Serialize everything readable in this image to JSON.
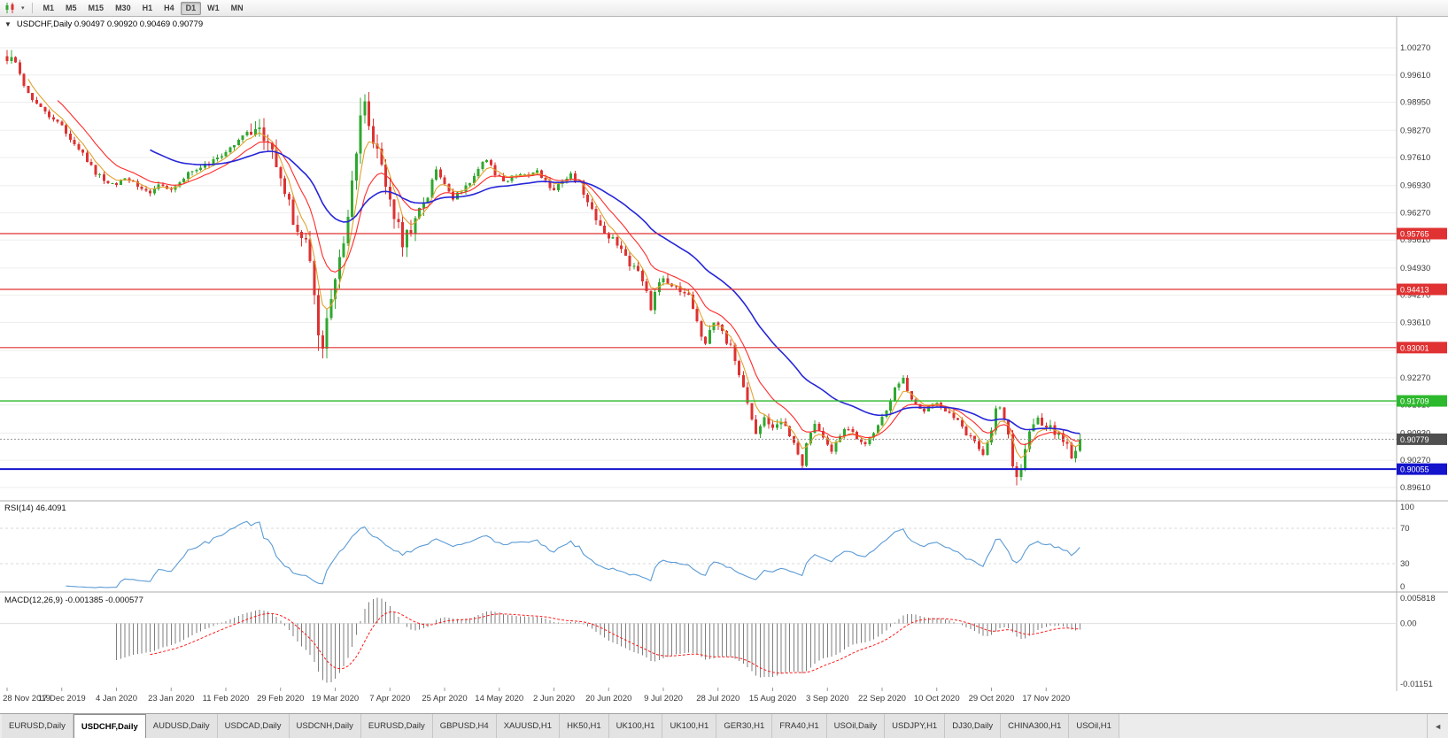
{
  "toolbar": {
    "timeframes": [
      {
        "label": "M1",
        "active": false
      },
      {
        "label": "M5",
        "active": false
      },
      {
        "label": "M15",
        "active": false
      },
      {
        "label": "M30",
        "active": false
      },
      {
        "label": "H1",
        "active": false
      },
      {
        "label": "H4",
        "active": false
      },
      {
        "label": "D1",
        "active": true
      },
      {
        "label": "W1",
        "active": false
      },
      {
        "label": "MN",
        "active": false
      }
    ],
    "icons": [
      {
        "name": "chart-type-icon"
      },
      {
        "name": "dropdown-caret-icon",
        "glyph": "▾"
      }
    ]
  },
  "chart": {
    "header": {
      "caret": "▼",
      "text": "USDCHF,Daily 0.90497 0.90920 0.90469 0.90779"
    }
  },
  "indicators": {
    "rsi": {
      "label": "RSI(14) 46.4091",
      "scale_labels": [
        "100",
        "70",
        "30",
        "0"
      ]
    },
    "macd": {
      "label": "MACD(12,26,9) -0.001385 -0.000577",
      "scale_labels": [
        "0.005818",
        "0.00",
        "-0.01151"
      ]
    }
  },
  "colors": {
    "up": "#2fa82f",
    "down": "#dd3232",
    "rsi": "#5b9bd5",
    "macd_hist": "#7f7f7f",
    "macd_signal": "#ff1a1a",
    "grid": "#ededed"
  },
  "chart_data": {
    "type": "candlestick",
    "symbol": "USDCHF",
    "timeframe": "Daily",
    "title": "USDCHF,Daily",
    "ylim": [
      0.8935,
      1.0085
    ],
    "candle_count": 256,
    "last_candle": {
      "open": 0.90497,
      "high": 0.9092,
      "low": 0.90469,
      "close": 0.90779
    },
    "current_price": {
      "value": 0.90779,
      "label": "0.90779",
      "tag_color": "#4f4f4f"
    },
    "y_ticks": [
      "1.00270",
      "0.99610",
      "0.98950",
      "0.98270",
      "0.97610",
      "0.96930",
      "0.96270",
      "0.95610",
      "0.94930",
      "0.94270",
      "0.93610",
      "0.92930",
      "0.92270",
      "0.91610",
      "0.90930",
      "0.90270",
      "0.89610"
    ],
    "x_labels": [
      "28 Nov 2019",
      "17 Dec 2019",
      "4 Jan 2020",
      "23 Jan 2020",
      "11 Feb 2020",
      "29 Feb 2020",
      "19 Mar 2020",
      "7 Apr 2020",
      "25 Apr 2020",
      "14 May 2020",
      "2 Jun 2020",
      "20 Jun 2020",
      "9 Jul 2020",
      "28 Jul 2020",
      "15 Aug 2020",
      "3 Sep 2020",
      "22 Sep 2020",
      "10 Oct 2020",
      "29 Oct 2020",
      "17 Nov 2020"
    ],
    "horizontal_levels": [
      {
        "price": 0.95765,
        "label": "0.95765",
        "color": "#e03232",
        "width": 1.2
      },
      {
        "price": 0.94413,
        "label": "0.94413",
        "color": "#e03232",
        "width": 1.2
      },
      {
        "price": 0.93001,
        "label": "0.93001",
        "color": "#e03232",
        "width": 1.2
      },
      {
        "price": 0.91709,
        "label": "0.91709",
        "color": "#2db92d",
        "width": 1.4
      },
      {
        "price": 0.90055,
        "label": "0.90055",
        "color": "#1414cc",
        "width": 2
      }
    ],
    "moving_averages": [
      {
        "name": "fast",
        "period": 5,
        "color": "#e0a22e"
      },
      {
        "name": "medium",
        "period": 12,
        "color": "#ff2a2a"
      },
      {
        "name": "slow",
        "period": 34,
        "color": "#2626d8"
      }
    ],
    "indicators": {
      "rsi": {
        "period": 14,
        "current": 46.4091,
        "levels": [
          70,
          30
        ]
      },
      "macd": {
        "fast": 12,
        "slow": 26,
        "signal": 9,
        "current_macd": -0.001385,
        "current_signal": -0.000577
      }
    },
    "close_anchors": [
      [
        0,
        0.9995
      ],
      [
        1,
        1.0005
      ],
      [
        2,
        0.999
      ],
      [
        3,
        0.996
      ],
      [
        4,
        0.994
      ],
      [
        6,
        0.9905
      ],
      [
        8,
        0.9885
      ],
      [
        10,
        0.986
      ],
      [
        12,
        0.985
      ],
      [
        13,
        0.9835
      ],
      [
        15,
        0.9805
      ],
      [
        17,
        0.9785
      ],
      [
        19,
        0.975
      ],
      [
        21,
        0.9725
      ],
      [
        23,
        0.9705
      ],
      [
        26,
        0.9698
      ],
      [
        28,
        0.9712
      ],
      [
        30,
        0.9702
      ],
      [
        32,
        0.9688
      ],
      [
        34,
        0.9672
      ],
      [
        36,
        0.969
      ],
      [
        39,
        0.9686
      ],
      [
        41,
        0.9705
      ],
      [
        44,
        0.9728
      ],
      [
        47,
        0.9742
      ],
      [
        50,
        0.9758
      ],
      [
        52,
        0.9772
      ],
      [
        55,
        0.98
      ],
      [
        57,
        0.9828
      ],
      [
        59,
        0.9838
      ],
      [
        61,
        0.98
      ],
      [
        63,
        0.9775
      ],
      [
        65,
        0.97
      ],
      [
        67,
        0.9642
      ],
      [
        69,
        0.959
      ],
      [
        71,
        0.9555
      ],
      [
        73,
        0.9445
      ],
      [
        74,
        0.9345
      ],
      [
        75,
        0.9302
      ],
      [
        76,
        0.936
      ],
      [
        77,
        0.9418
      ],
      [
        78,
        0.9465
      ],
      [
        80,
        0.9555
      ],
      [
        82,
        0.9695
      ],
      [
        84,
        0.9855
      ],
      [
        85,
        0.9885
      ],
      [
        86,
        0.9845
      ],
      [
        88,
        0.9765
      ],
      [
        90,
        0.97
      ],
      [
        92,
        0.9625
      ],
      [
        94,
        0.956
      ],
      [
        96,
        0.9588
      ],
      [
        98,
        0.964
      ],
      [
        100,
        0.9678
      ],
      [
        102,
        0.9728
      ],
      [
        104,
        0.9692
      ],
      [
        106,
        0.9662
      ],
      [
        108,
        0.968
      ],
      [
        110,
        0.9702
      ],
      [
        112,
        0.9738
      ],
      [
        114,
        0.9758
      ],
      [
        116,
        0.9722
      ],
      [
        118,
        0.97
      ],
      [
        120,
        0.9712
      ],
      [
        122,
        0.9724
      ],
      [
        124,
        0.9716
      ],
      [
        126,
        0.973
      ],
      [
        128,
        0.9702
      ],
      [
        130,
        0.9682
      ],
      [
        132,
        0.97
      ],
      [
        134,
        0.9718
      ],
      [
        136,
        0.9698
      ],
      [
        138,
        0.9645
      ],
      [
        140,
        0.9612
      ],
      [
        142,
        0.9582
      ],
      [
        144,
        0.956
      ],
      [
        146,
        0.9532
      ],
      [
        148,
        0.9502
      ],
      [
        150,
        0.9482
      ],
      [
        152,
        0.9432
      ],
      [
        153,
        0.9392
      ],
      [
        154,
        0.944
      ],
      [
        156,
        0.9468
      ],
      [
        158,
        0.9452
      ],
      [
        160,
        0.944
      ],
      [
        162,
        0.9432
      ],
      [
        163,
        0.9392
      ],
      [
        164,
        0.9362
      ],
      [
        165,
        0.9322
      ],
      [
        166,
        0.9302
      ],
      [
        167,
        0.9348
      ],
      [
        168,
        0.936
      ],
      [
        170,
        0.9332
      ],
      [
        172,
        0.93
      ],
      [
        174,
        0.9242
      ],
      [
        176,
        0.9162
      ],
      [
        178,
        0.9096
      ],
      [
        180,
        0.914
      ],
      [
        182,
        0.9102
      ],
      [
        184,
        0.9122
      ],
      [
        186,
        0.9082
      ],
      [
        188,
        0.9042
      ],
      [
        189,
        0.9022
      ],
      [
        190,
        0.9068
      ],
      [
        192,
        0.9108
      ],
      [
        194,
        0.9082
      ],
      [
        196,
        0.9052
      ],
      [
        198,
        0.9088
      ],
      [
        200,
        0.9108
      ],
      [
        202,
        0.9082
      ],
      [
        204,
        0.9062
      ],
      [
        206,
        0.9092
      ],
      [
        208,
        0.9128
      ],
      [
        210,
        0.9178
      ],
      [
        212,
        0.9218
      ],
      [
        213,
        0.9228
      ],
      [
        214,
        0.9192
      ],
      [
        216,
        0.9162
      ],
      [
        218,
        0.9142
      ],
      [
        220,
        0.9168
      ],
      [
        222,
        0.9158
      ],
      [
        224,
        0.9142
      ],
      [
        226,
        0.9122
      ],
      [
        228,
        0.9092
      ],
      [
        230,
        0.9072
      ],
      [
        232,
        0.9042
      ],
      [
        234,
        0.9098
      ],
      [
        235,
        0.9158
      ],
      [
        236,
        0.9148
      ],
      [
        237,
        0.9118
      ],
      [
        238,
        0.9082
      ],
      [
        239,
        0.9022
      ],
      [
        240,
        0.8992
      ],
      [
        241,
        0.9012
      ],
      [
        242,
        0.9052
      ],
      [
        243,
        0.9092
      ],
      [
        244,
        0.9122
      ],
      [
        245,
        0.914
      ],
      [
        246,
        0.9112
      ],
      [
        248,
        0.9104
      ],
      [
        250,
        0.9088
      ],
      [
        252,
        0.9058
      ],
      [
        253,
        0.9032
      ],
      [
        254,
        0.90497
      ],
      [
        255,
        0.90779
      ]
    ]
  },
  "tabs": {
    "items": [
      {
        "label": "EURUSD,Daily",
        "active": false
      },
      {
        "label": "USDCHF,Daily",
        "active": true
      },
      {
        "label": "AUDUSD,Daily",
        "active": false
      },
      {
        "label": "USDCAD,Daily",
        "active": false
      },
      {
        "label": "USDCNH,Daily",
        "active": false
      },
      {
        "label": "EURUSD,Daily",
        "active": false
      },
      {
        "label": "GBPUSD,H4",
        "active": false
      },
      {
        "label": "XAUUSD,H1",
        "active": false
      },
      {
        "label": "HK50,H1",
        "active": false
      },
      {
        "label": "UK100,H1",
        "active": false
      },
      {
        "label": "UK100,H1",
        "active": false
      },
      {
        "label": "GER30,H1",
        "active": false
      },
      {
        "label": "FRA40,H1",
        "active": false
      },
      {
        "label": "USOil,Daily",
        "active": false
      },
      {
        "label": "USDJPY,H1",
        "active": false
      },
      {
        "label": "DJ30,Daily",
        "active": false
      },
      {
        "label": "CHINA300,H1",
        "active": false
      },
      {
        "label": "USOil,H1",
        "active": false
      }
    ],
    "scroll_left_glyph": "◄"
  }
}
